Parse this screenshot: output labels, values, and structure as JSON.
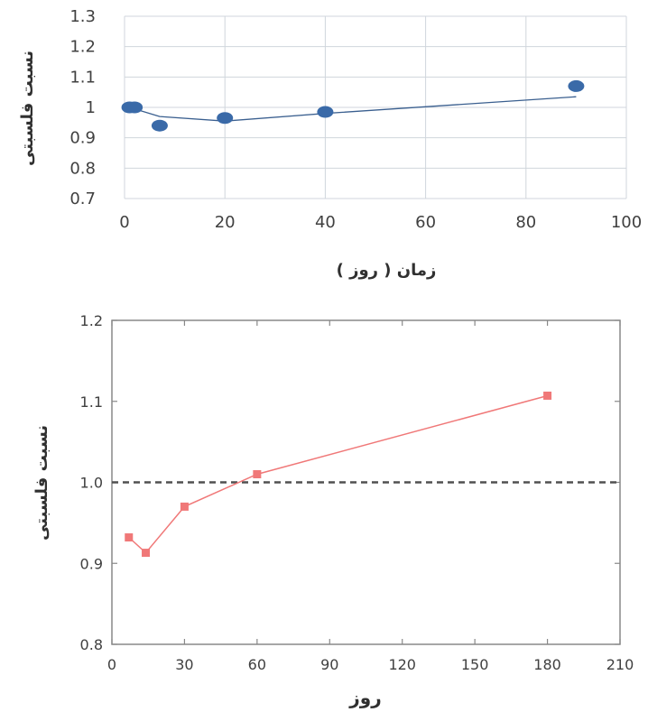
{
  "chart_data": [
    {
      "type": "scatter",
      "xlabel": "زمان ( روز )",
      "ylabel": "نسبت فلسبتی",
      "xlim": [
        0,
        100
      ],
      "ylim": [
        0.7,
        1.3
      ],
      "xticks": [
        "0",
        "20",
        "40",
        "60",
        "80",
        "100"
      ],
      "yticks": [
        "0.7",
        "0.8",
        "0.9",
        "1",
        "1.1",
        "1.2",
        "1.3"
      ],
      "grid": true,
      "series": [
        {
          "color": "#3a6aa8",
          "points": [
            {
              "x": 1,
              "y": 1.0
            },
            {
              "x": 2,
              "y": 1.0
            },
            {
              "x": 7,
              "y": 0.94
            },
            {
              "x": 20,
              "y": 0.965
            },
            {
              "x": 40,
              "y": 0.985
            },
            {
              "x": 90,
              "y": 1.07
            }
          ],
          "trend": [
            {
              "x": 1,
              "y": 1.0
            },
            {
              "x": 7,
              "y": 0.97
            },
            {
              "x": 20,
              "y": 0.955
            },
            {
              "x": 40,
              "y": 0.98
            },
            {
              "x": 90,
              "y": 1.035
            }
          ]
        }
      ]
    },
    {
      "type": "line",
      "xlabel": "روز",
      "ylabel": "نسبت فلسبتی",
      "xlim": [
        0,
        210
      ],
      "ylim": [
        0.8,
        1.2
      ],
      "xticks": [
        "0",
        "30",
        "60",
        "90",
        "120",
        "150",
        "180",
        "210"
      ],
      "yticks": [
        "0.8",
        "0.9",
        "1.0",
        "1.1",
        "1.2"
      ],
      "grid": false,
      "reference_line": 1.0,
      "series": [
        {
          "color": "#f07878",
          "points": [
            {
              "x": 7,
              "y": 0.932
            },
            {
              "x": 14,
              "y": 0.913
            },
            {
              "x": 30,
              "y": 0.97
            },
            {
              "x": 60,
              "y": 1.01
            },
            {
              "x": 180,
              "y": 1.107
            }
          ]
        }
      ]
    }
  ]
}
